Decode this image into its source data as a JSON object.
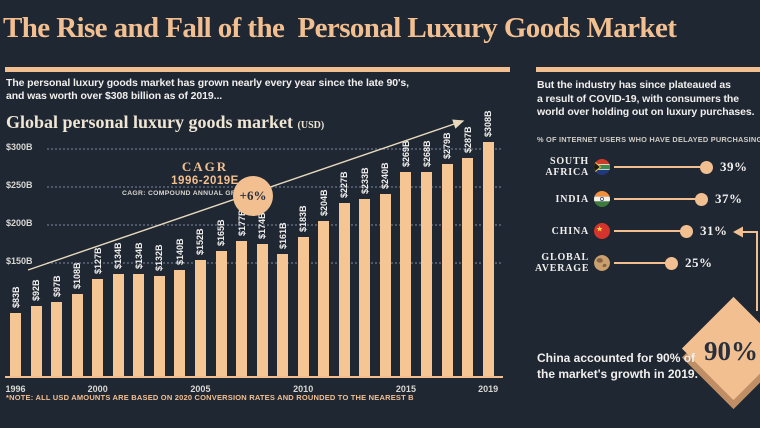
{
  "title": "The Rise and Fall of the  Personal Luxury Goods Market",
  "left": {
    "intro": "The personal luxury goods market has grown nearly every year since the late 90's,\nand was worth over $308 billion as of 2019...",
    "chart_heading": "Global personal luxury goods market",
    "chart_heading_unit": "(USD)",
    "footnote": "*NOTE: ALL USD AMOUNTS ARE BASED ON 2020 CONVERSION RATES AND ROUNDED TO THE NEAREST B"
  },
  "right": {
    "intro": "But the industry has since plateaued as\na result of COVID-19, with consumers the\nworld over holding out on luxury purchases.",
    "list_heading": "% OF INTERNET USERS WHO HAVE DELAYED PURCHASING LUXURY",
    "rows": [
      {
        "label_lines": [
          "SOUTH",
          "AFRICA"
        ],
        "flag": "south-africa-flag",
        "value": 39,
        "display": "39%"
      },
      {
        "label_lines": [
          "INDIA"
        ],
        "flag": "india-flag",
        "value": 37,
        "display": "37%"
      },
      {
        "label_lines": [
          "CHINA"
        ],
        "flag": "china-flag",
        "value": 31,
        "display": "31%"
      },
      {
        "label_lines": [
          "GLOBAL",
          "AVERAGE"
        ],
        "flag": "globe-icon",
        "value": 25,
        "display": "25%"
      }
    ],
    "callout": {
      "text": "China accounted for 90% of\nthe market's growth in 2019.",
      "badge": "90%"
    }
  },
  "chart_data": {
    "type": "bar",
    "title": "Global personal luxury goods market (USD)",
    "xlabel": "",
    "ylabel": "",
    "ylim": [
      0,
      315
    ],
    "grid": "dotted-horizontal",
    "categories": [
      1996,
      1997,
      1998,
      1999,
      2000,
      2001,
      2002,
      2003,
      2004,
      2005,
      2006,
      2007,
      2008,
      2009,
      2010,
      2011,
      2012,
      2013,
      2014,
      2015,
      2016,
      2017,
      2018,
      2019
    ],
    "values": [
      83,
      92,
      97,
      108,
      127,
      134,
      134,
      132,
      140,
      152,
      165,
      177,
      174,
      161,
      183,
      204,
      227,
      233,
      240,
      269,
      268,
      279,
      287,
      308
    ],
    "bar_labels": [
      "$83B",
      "$92B",
      "$97B",
      "$108B",
      "$127B",
      "$134B",
      "$134B",
      "$132B",
      "$140B",
      "$152B",
      "$165B",
      "$177B",
      "$174B",
      "$161B",
      "$183B",
      "$204B",
      "$227B",
      "$233B",
      "$240B",
      "$269B",
      "$268B",
      "$279B",
      "$287B",
      "$308B"
    ],
    "ytick_values": [
      300,
      250,
      200,
      150
    ],
    "ylabel_ticks": [
      "$300B",
      "$250B",
      "$200B",
      "$150B"
    ],
    "x_axis_ticks": [
      "1996",
      "2000",
      "2005",
      "2010",
      "2015",
      "2019"
    ],
    "annotation": {
      "title": "CAGR",
      "range": "1996-2019E",
      "note": "CAGR: COMPOUND ANNUAL GROWTH",
      "badge": "+6%"
    }
  },
  "colors": {
    "bg": "#1f2733",
    "accent": "#f2bf90",
    "bar": "#f5c593",
    "cream": "#efe6d4",
    "white": "#f1efec",
    "muted": "#cfccc4",
    "grid": "#4e586a",
    "dark": "#28303d",
    "dshadow": "#bf8e65",
    "trend": "#e8d9bd",
    "axis": "#d8d7d2"
  }
}
